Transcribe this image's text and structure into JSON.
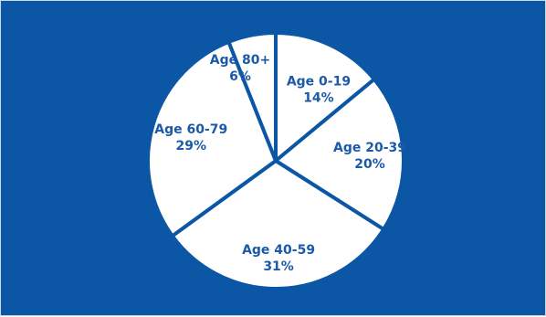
{
  "chart_data": {
    "type": "pie",
    "title": "",
    "slices": [
      {
        "category": "Age 0-19",
        "value": 14,
        "value_label": "14%"
      },
      {
        "category": "Age 20-39",
        "value": 20,
        "value_label": "20%"
      },
      {
        "category": "Age 40-59",
        "value": 31,
        "value_label": "31%"
      },
      {
        "category": "Age 60-79",
        "value": 29,
        "value_label": "29%"
      },
      {
        "category": "Age 80+",
        "value": 6,
        "value_label": "6%"
      }
    ],
    "start_angle_deg": 0,
    "direction": "clockwise",
    "legend": "none",
    "colors": {
      "background": "#0b56a5",
      "slice_fill": "#ffffff",
      "slice_border": "#0b56a5",
      "label_text": "#1a5aa6"
    }
  }
}
